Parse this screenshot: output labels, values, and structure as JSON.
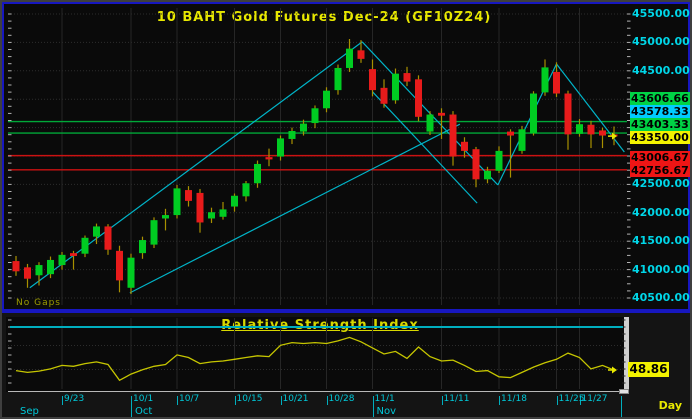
{
  "main_chart": {
    "title": "10 BAHT Gold Futures Dec-24 (GF10Z24)",
    "no_gaps_label": "No Gaps",
    "price_axis_labels": [
      {
        "text": "45500.00",
        "price": 45500
      },
      {
        "text": "45000.00",
        "price": 45000
      },
      {
        "text": "44500.00",
        "price": 44500
      },
      {
        "text": "42500.00",
        "price": 42500
      },
      {
        "text": "42000.00",
        "price": 42000
      },
      {
        "text": "41500.00",
        "price": 41500
      },
      {
        "text": "41000.00",
        "price": 41000
      },
      {
        "text": "40500.00",
        "price": 40500
      }
    ],
    "price_boxes": [
      {
        "text": "43606.66",
        "color": "#00d245",
        "kind": "resistance-level"
      },
      {
        "text": "43578.33",
        "color": "#00ccff",
        "kind": "indicator-value"
      },
      {
        "text": "43403.33",
        "color": "#00d245",
        "kind": "resistance-level"
      },
      {
        "text": "43350.00",
        "color": "#f2f200",
        "kind": "last-price"
      },
      {
        "text": "43006.67",
        "color": "#ee1515",
        "kind": "support-level"
      },
      {
        "text": "42756.67",
        "color": "#ee1515",
        "kind": "support-level"
      }
    ],
    "last_price": 43350.0
  },
  "rsi": {
    "title": "Relative Strength Index",
    "value_label": "48.86",
    "last_value": 48.86
  },
  "x_axis": {
    "date_ticks": [
      {
        "label": "9/23",
        "i": 4
      },
      {
        "label": "10/1",
        "i": 10
      },
      {
        "label": "10/7",
        "i": 14
      },
      {
        "label": "10/15",
        "i": 19
      },
      {
        "label": "10/21",
        "i": 23
      },
      {
        "label": "10/28",
        "i": 27
      },
      {
        "label": "11/1",
        "i": 31
      },
      {
        "label": "11/11",
        "i": 37
      },
      {
        "label": "11/18",
        "i": 42
      },
      {
        "label": "11/25",
        "i": 47
      },
      {
        "label": "11/27",
        "i": 49
      }
    ],
    "month_labels": [
      {
        "label": "Sep",
        "i": 0
      },
      {
        "label": "Oct",
        "i": 10
      },
      {
        "label": "Nov",
        "i": 31
      }
    ],
    "timeframe_label": "Day"
  },
  "chart_data": {
    "type": "candlestick",
    "title": "10 BAHT Gold Futures Dec-24 (GF10Z24)",
    "symbol": "GF10Z24",
    "timeframe": "Day",
    "price_axis_visible_range": [
      40350,
      45600
    ],
    "grid": true,
    "resistance_lines": [
      43606.66,
      43403.33
    ],
    "support_lines": [
      43006.67,
      42756.67
    ],
    "candles": [
      [
        "9/17",
        41150,
        41240,
        40890,
        40970
      ],
      [
        "9/18",
        41040,
        41100,
        40680,
        40840
      ],
      [
        "9/19",
        40900,
        41130,
        40720,
        41080
      ],
      [
        "9/20",
        40920,
        41230,
        40850,
        41170
      ],
      [
        "9/23",
        41080,
        41310,
        41000,
        41260
      ],
      [
        "9/24",
        41290,
        41330,
        41000,
        41240
      ],
      [
        "9/25",
        41280,
        41600,
        41220,
        41560
      ],
      [
        "9/26",
        41580,
        41810,
        41450,
        41760
      ],
      [
        "9/27",
        41760,
        41800,
        41260,
        41350
      ],
      [
        "9/30",
        41330,
        41420,
        40600,
        40810
      ],
      [
        "10/1",
        40680,
        41280,
        40570,
        41210
      ],
      [
        "10/2",
        41290,
        41580,
        41190,
        41520
      ],
      [
        "10/3",
        41440,
        41920,
        41380,
        41870
      ],
      [
        "10/4",
        41900,
        42070,
        41690,
        41960
      ],
      [
        "10/7",
        41960,
        42490,
        41900,
        42430
      ],
      [
        "10/8",
        42400,
        42470,
        42110,
        42210
      ],
      [
        "10/9",
        42350,
        42420,
        41650,
        41830
      ],
      [
        "10/10",
        41900,
        42090,
        41820,
        42010
      ],
      [
        "10/11",
        41930,
        42190,
        41880,
        42060
      ],
      [
        "10/15",
        42110,
        42340,
        42020,
        42300
      ],
      [
        "10/16",
        42290,
        42560,
        42200,
        42520
      ],
      [
        "10/17",
        42520,
        42920,
        42440,
        42860
      ],
      [
        "10/18",
        42980,
        43130,
        42820,
        42940
      ],
      [
        "10/21",
        42990,
        43360,
        42920,
        43310
      ],
      [
        "10/22",
        43300,
        43500,
        43210,
        43440
      ],
      [
        "10/24",
        43430,
        43640,
        43360,
        43570
      ],
      [
        "10/25",
        43580,
        43890,
        43490,
        43840
      ],
      [
        "10/28",
        43840,
        44210,
        43770,
        44150
      ],
      [
        "10/29",
        44160,
        44610,
        44080,
        44550
      ],
      [
        "10/30",
        44550,
        45060,
        44480,
        44890
      ],
      [
        "10/31",
        44860,
        45040,
        44640,
        44710
      ],
      [
        "11/1",
        44530,
        44700,
        44050,
        44160
      ],
      [
        "11/4",
        44200,
        44350,
        43850,
        43920
      ],
      [
        "11/5",
        43980,
        44540,
        43920,
        44450
      ],
      [
        "11/6",
        44460,
        44570,
        44230,
        44310
      ],
      [
        "11/7",
        44350,
        44420,
        43610,
        43690
      ],
      [
        "11/8",
        43430,
        43790,
        43370,
        43730
      ],
      [
        "11/11",
        43760,
        43840,
        43300,
        43710
      ],
      [
        "11/12",
        43730,
        43790,
        42830,
        42990
      ],
      [
        "11/13",
        43250,
        43330,
        42970,
        43090
      ],
      [
        "11/14",
        43120,
        43160,
        42450,
        42590
      ],
      [
        "11/15",
        42590,
        42810,
        42520,
        42740
      ],
      [
        "11/18",
        42740,
        43170,
        42700,
        43090
      ],
      [
        "11/19",
        43430,
        43470,
        42620,
        43360
      ],
      [
        "11/20",
        43090,
        43530,
        43040,
        43470
      ],
      [
        "11/21",
        43400,
        44140,
        43360,
        44100
      ],
      [
        "11/22",
        44120,
        44700,
        44060,
        44560
      ],
      [
        "11/25",
        44480,
        44650,
        44040,
        44100
      ],
      [
        "11/26",
        44100,
        44150,
        43110,
        43380
      ],
      [
        "11/27",
        43390,
        43650,
        43340,
        43560
      ],
      [
        "11/28",
        43550,
        43620,
        43140,
        43380
      ],
      [
        "11/29",
        43450,
        43500,
        43140,
        43360
      ],
      [
        "12/2",
        43380,
        43520,
        43190,
        43350
      ]
    ],
    "trend_channels_index_price": [
      {
        "name": "rising-channel-upper",
        "i1": 1.2,
        "p1": 40680,
        "i2": 30.1,
        "p2": 45010
      },
      {
        "name": "rising-channel-lower",
        "i1": 9.9,
        "p1": 40590,
        "i2": 38.6,
        "p2": 43560
      },
      {
        "name": "falling-channel-upper",
        "i1": 30.1,
        "p1": 45010,
        "i2": 41.9,
        "p2": 42490
      },
      {
        "name": "falling-channel-lower",
        "i1": 31.0,
        "p1": 44130,
        "i2": 40.1,
        "p2": 42170
      },
      {
        "name": "nov-rising-line",
        "i1": 41.9,
        "p1": 42490,
        "i2": 47.0,
        "p2": 44620
      },
      {
        "name": "final-falling-line",
        "i1": 47.0,
        "p1": 44620,
        "i2": 52.9,
        "p2": 43070
      }
    ],
    "rsi_series": [
      48.5,
      47.5,
      48.2,
      49.5,
      51.5,
      51.0,
      52.5,
      53.5,
      52.0,
      43.0,
      46.5,
      49.0,
      51.0,
      52.0,
      57.5,
      56.0,
      52.5,
      53.5,
      54.0,
      55.0,
      56.0,
      57.0,
      56.5,
      63.0,
      64.5,
      64.0,
      64.5,
      64.0,
      65.5,
      67.5,
      65.0,
      61.5,
      58.0,
      59.5,
      55.5,
      62.0,
      56.5,
      54.0,
      54.5,
      51.5,
      48.0,
      48.5,
      45.0,
      44.5,
      47.5,
      50.5,
      53.0,
      55.0,
      58.5,
      56.0,
      49.5,
      51.5,
      48.86
    ]
  },
  "colors": {
    "candle_up": "#00cc22",
    "candle_down": "#e81b1b",
    "wick": "#a89000",
    "resistance_line": "#00a838",
    "support_line": "#cc1212",
    "trendline": "#00b4c8",
    "rsi_line": "#c6c600",
    "axis_text": "#00d6e8",
    "title_text": "#e8e800",
    "panel_border": "#1717c0",
    "panel_bg": "#0a0a0a"
  }
}
